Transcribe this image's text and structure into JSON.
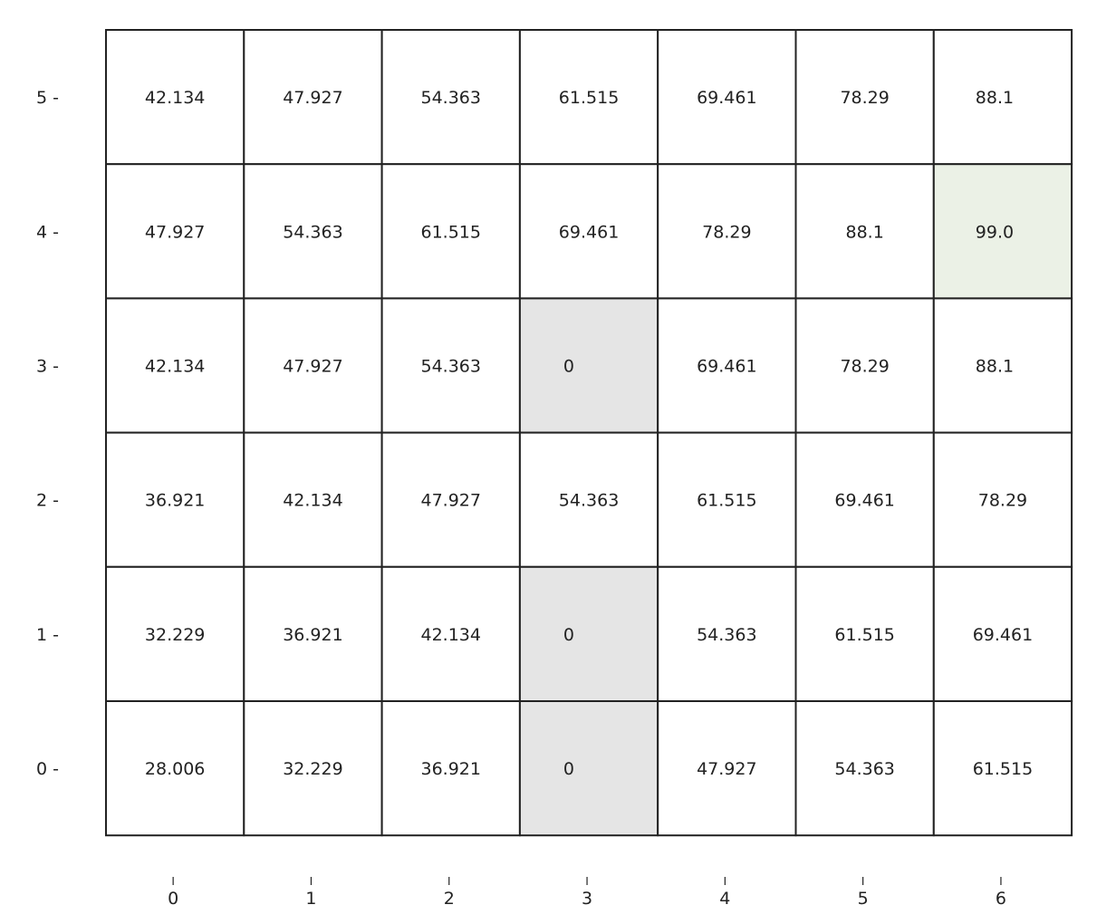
{
  "chart_data": {
    "type": "heatmap",
    "title": "",
    "xlabel": "",
    "ylabel": "",
    "x_ticks": [
      "0",
      "1",
      "2",
      "3",
      "4",
      "5",
      "6"
    ],
    "y_ticks": [
      "0",
      "1",
      "2",
      "3",
      "4",
      "5"
    ],
    "rows_top_to_bottom": [
      {
        "y": 5,
        "values": [
          "42.134",
          "47.927",
          "54.363",
          "61.515",
          "69.461",
          "78.29",
          "88.1"
        ]
      },
      {
        "y": 4,
        "values": [
          "47.927",
          "54.363",
          "61.515",
          "69.461",
          "78.29",
          "88.1",
          "99.0"
        ]
      },
      {
        "y": 3,
        "values": [
          "42.134",
          "47.927",
          "54.363",
          "0",
          "69.461",
          "78.29",
          "88.1"
        ]
      },
      {
        "y": 2,
        "values": [
          "36.921",
          "42.134",
          "47.927",
          "54.363",
          "61.515",
          "69.461",
          "78.29"
        ]
      },
      {
        "y": 1,
        "values": [
          "32.229",
          "36.921",
          "42.134",
          "0",
          "54.363",
          "61.515",
          "69.461"
        ]
      },
      {
        "y": 0,
        "values": [
          "28.006",
          "32.229",
          "36.921",
          "0",
          "47.927",
          "54.363",
          "61.515"
        ]
      }
    ],
    "wall_cells": [
      [
        3,
        3
      ],
      [
        3,
        1
      ],
      [
        3,
        0
      ]
    ],
    "goal_cell": [
      6,
      4
    ],
    "colors": {
      "background": "#ffffff",
      "grid_line": "#222222",
      "wall_fill": "#e5e5e5",
      "goal_fill": "#ebf1e6",
      "text": "#222222"
    }
  }
}
